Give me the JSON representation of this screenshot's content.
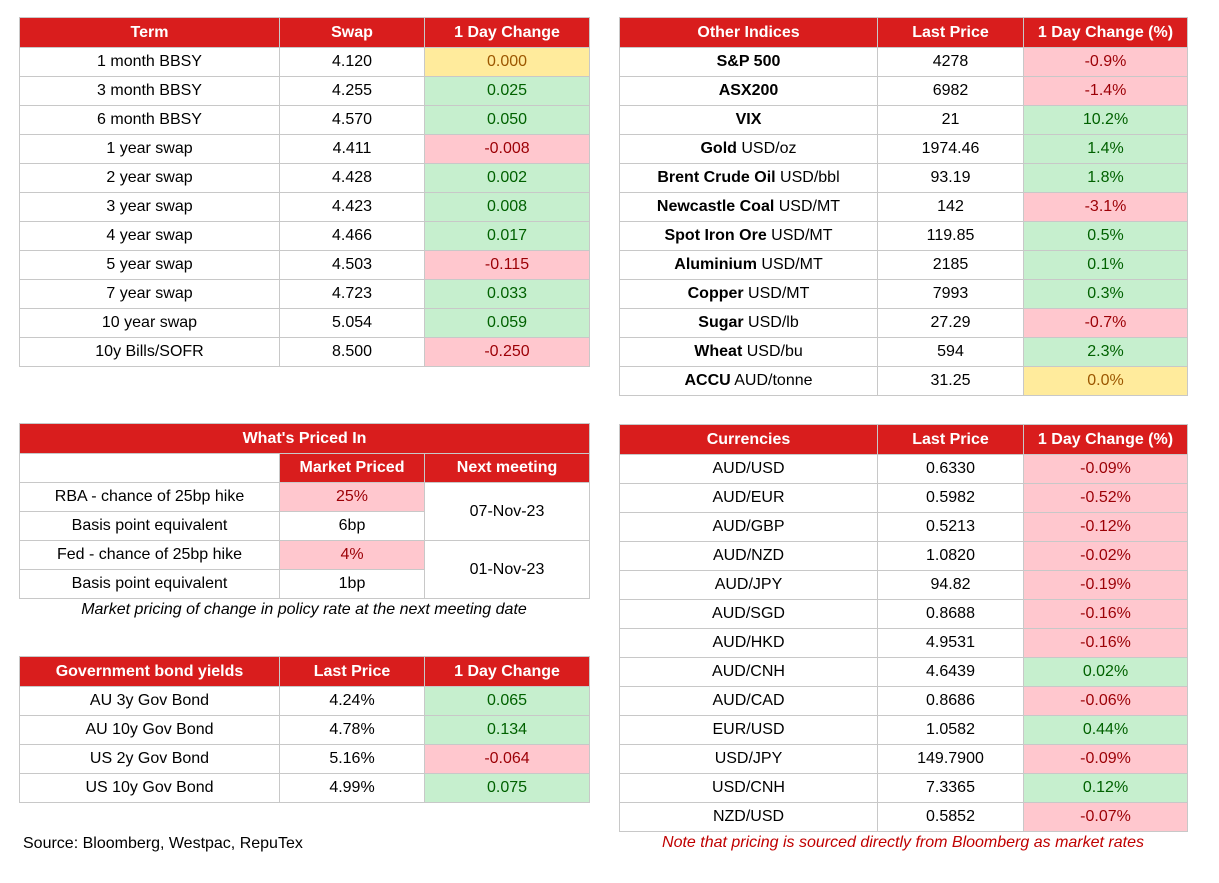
{
  "swaps": {
    "headers": [
      "Term",
      "Swap",
      "1 Day Change"
    ],
    "rows": [
      {
        "term": "1 month BBSY",
        "swap": "4.120",
        "change": "0.000",
        "tone": "y"
      },
      {
        "term": "3 month BBSY",
        "swap": "4.255",
        "change": "0.025",
        "tone": "g"
      },
      {
        "term": "6 month BBSY",
        "swap": "4.570",
        "change": "0.050",
        "tone": "g"
      },
      {
        "term": "1 year swap",
        "swap": "4.411",
        "change": "-0.008",
        "tone": "r"
      },
      {
        "term": "2 year swap",
        "swap": "4.428",
        "change": "0.002",
        "tone": "g"
      },
      {
        "term": "3 year swap",
        "swap": "4.423",
        "change": "0.008",
        "tone": "g"
      },
      {
        "term": "4 year swap",
        "swap": "4.466",
        "change": "0.017",
        "tone": "g"
      },
      {
        "term": "5 year swap",
        "swap": "4.503",
        "change": "-0.115",
        "tone": "r"
      },
      {
        "term": "7 year swap",
        "swap": "4.723",
        "change": "0.033",
        "tone": "g"
      },
      {
        "term": "10 year swap",
        "swap": "5.054",
        "change": "0.059",
        "tone": "g"
      },
      {
        "term": "10y Bills/SOFR",
        "swap": "8.500",
        "change": "-0.250",
        "tone": "r"
      }
    ]
  },
  "indices": {
    "headers": [
      "Other Indices",
      "Last Price",
      "1 Day Change (%)"
    ],
    "rows": [
      {
        "name": "S&P 500",
        "unit": "",
        "price": "4278",
        "change": "-0.9%",
        "tone": "r"
      },
      {
        "name": "ASX200",
        "unit": "",
        "price": "6982",
        "change": "-1.4%",
        "tone": "r"
      },
      {
        "name": "VIX",
        "unit": "",
        "price": "21",
        "change": "10.2%",
        "tone": "g"
      },
      {
        "name": "Gold",
        "unit": " USD/oz",
        "price": "1974.46",
        "change": "1.4%",
        "tone": "g"
      },
      {
        "name": "Brent Crude Oil",
        "unit": " USD/bbl",
        "price": "93.19",
        "change": "1.8%",
        "tone": "g"
      },
      {
        "name": "Newcastle Coal",
        "unit": " USD/MT",
        "price": "142",
        "change": "-3.1%",
        "tone": "r"
      },
      {
        "name": "Spot Iron Ore",
        "unit": " USD/MT",
        "price": "119.85",
        "change": "0.5%",
        "tone": "g"
      },
      {
        "name": "Aluminium",
        "unit": " USD/MT",
        "price": "2185",
        "change": "0.1%",
        "tone": "g"
      },
      {
        "name": "Copper",
        "unit": " USD/MT",
        "price": "7993",
        "change": "0.3%",
        "tone": "g"
      },
      {
        "name": "Sugar",
        "unit": " USD/lb",
        "price": "27.29",
        "change": "-0.7%",
        "tone": "r"
      },
      {
        "name": "Wheat",
        "unit": " USD/bu",
        "price": "594",
        "change": "2.3%",
        "tone": "g"
      },
      {
        "name": "ACCU",
        "unit": " AUD/tonne",
        "price": "31.25",
        "change": "0.0%",
        "tone": "y"
      }
    ]
  },
  "priced_in": {
    "title": "What's Priced In",
    "col_market": "Market Priced",
    "col_next": "Next meeting",
    "groups": [
      {
        "label": "RBA - chance of 25bp hike",
        "value": "25%",
        "bp_label": "Basis point equivalent",
        "bp": "6bp",
        "meeting": "07-Nov-23"
      },
      {
        "label": "Fed - chance of 25bp hike",
        "value": "4%",
        "bp_label": "Basis point equivalent",
        "bp": "1bp",
        "meeting": "01-Nov-23"
      }
    ],
    "caption": "Market pricing of change in policy rate at the next meeting date"
  },
  "bonds": {
    "headers": [
      "Government bond yields",
      "Last Price",
      "1 Day Change"
    ],
    "rows": [
      {
        "name": "AU 3y Gov Bond",
        "price": "4.24%",
        "change": "0.065",
        "tone": "g"
      },
      {
        "name": "AU 10y Gov Bond",
        "price": "4.78%",
        "change": "0.134",
        "tone": "g"
      },
      {
        "name": "US 2y Gov Bond",
        "price": "5.16%",
        "change": "-0.064",
        "tone": "r"
      },
      {
        "name": "US 10y Gov Bond",
        "price": "4.99%",
        "change": "0.075",
        "tone": "g"
      }
    ]
  },
  "currencies": {
    "headers": [
      "Currencies",
      "Last Price",
      "1 Day Change (%)"
    ],
    "rows": [
      {
        "pair": "AUD/USD",
        "price": "0.6330",
        "change": "-0.09%",
        "tone": "r"
      },
      {
        "pair": "AUD/EUR",
        "price": "0.5982",
        "change": "-0.52%",
        "tone": "r"
      },
      {
        "pair": "AUD/GBP",
        "price": "0.5213",
        "change": "-0.12%",
        "tone": "r"
      },
      {
        "pair": "AUD/NZD",
        "price": "1.0820",
        "change": "-0.02%",
        "tone": "r"
      },
      {
        "pair": "AUD/JPY",
        "price": "94.82",
        "change": "-0.19%",
        "tone": "r"
      },
      {
        "pair": "AUD/SGD",
        "price": "0.8688",
        "change": "-0.16%",
        "tone": "r"
      },
      {
        "pair": "AUD/HKD",
        "price": "4.9531",
        "change": "-0.16%",
        "tone": "r"
      },
      {
        "pair": "AUD/CNH",
        "price": "4.6439",
        "change": "0.02%",
        "tone": "g"
      },
      {
        "pair": "AUD/CAD",
        "price": "0.8686",
        "change": "-0.06%",
        "tone": "r"
      },
      {
        "pair": "EUR/USD",
        "price": "1.0582",
        "change": "0.44%",
        "tone": "g"
      },
      {
        "pair": "USD/JPY",
        "price": "149.7900",
        "change": "-0.09%",
        "tone": "r"
      },
      {
        "pair": "USD/CNH",
        "price": "7.3365",
        "change": "0.12%",
        "tone": "g"
      },
      {
        "pair": "NZD/USD",
        "price": "0.5852",
        "change": "-0.07%",
        "tone": "r"
      }
    ]
  },
  "footer": {
    "source": "Source: Bloomberg, Westpac, RepuTex",
    "note": "Note that pricing is sourced directly from Bloomberg as market rates"
  }
}
